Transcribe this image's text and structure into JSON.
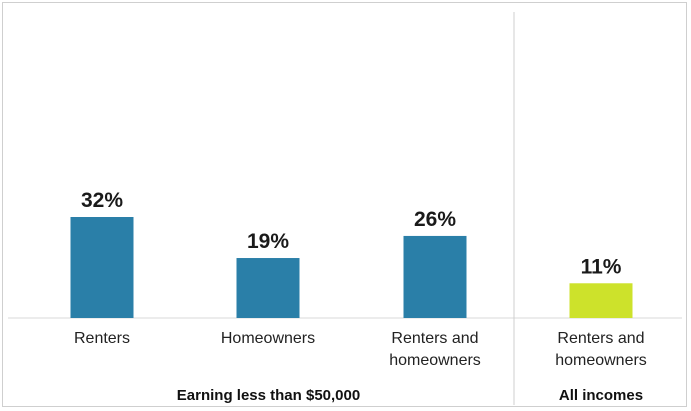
{
  "chart_data": {
    "type": "bar",
    "categories": [
      [
        "Renters"
      ],
      [
        "Homeowners"
      ],
      [
        "Renters and",
        "homeowners"
      ],
      [
        "Renters and",
        "homeowners"
      ]
    ],
    "values": [
      32,
      19,
      26,
      11
    ],
    "value_labels": [
      "32%",
      "19%",
      "26%",
      "11%"
    ],
    "groups": [
      {
        "label": "Earning less than $50,000",
        "members": [
          0,
          1,
          2
        ]
      },
      {
        "label": "All incomes",
        "members": [
          3
        ]
      }
    ],
    "colors": [
      "#2a7fa8",
      "#2a7fa8",
      "#2a7fa8",
      "#cde22b"
    ],
    "title": "",
    "xlabel": "",
    "ylabel": "",
    "ylim": [
      0,
      32
    ],
    "grid": false
  }
}
